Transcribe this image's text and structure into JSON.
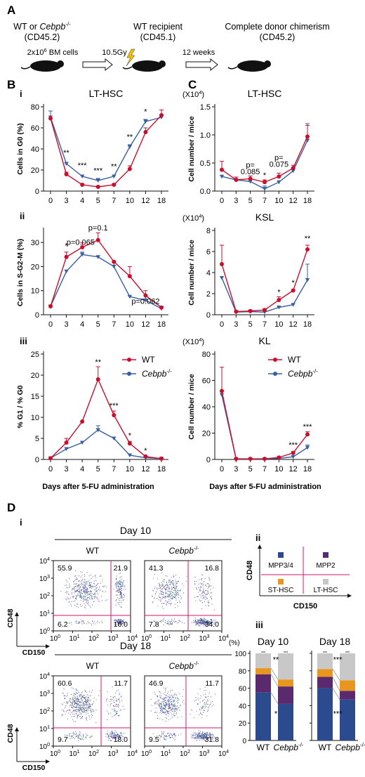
{
  "panel_A": {
    "letter": "A",
    "donor_label_pre": "WT or ",
    "donor_label_gene": "Cebpb",
    "donor_label_sup": "-/-",
    "donor_marker": "(CD45.2)",
    "cells": "2x10",
    "cells_exp": "6",
    "cells_rest": " BM cells",
    "dose": "10.5Gy",
    "recipient_label": "WT recipient",
    "recipient_marker": "(CD45.1)",
    "weeks": "12 weeks",
    "result_label": "Complete donor chimerism",
    "result_marker": "(CD45.2)"
  },
  "panel_letters": {
    "B": "B",
    "C": "C",
    "D": "D"
  },
  "sub_labels": {
    "i": "i",
    "ii": "ii",
    "iii": "iii"
  },
  "shared": {
    "xlabel": "Days after 5-FU administration",
    "legend_wt": "WT",
    "legend_ko_gene": "Cebpb",
    "legend_ko_sup": "-/-",
    "colors": {
      "wt": "#c8102e",
      "ko": "#3a5f9e"
    }
  },
  "chart_data": [
    {
      "id": "B-i",
      "type": "line",
      "title": "LT-HSC",
      "ylabel": "Cells in G0 (%)",
      "categories": [
        "0",
        "3",
        "4",
        "5",
        "7",
        "10",
        "12",
        "18"
      ],
      "ylim": [
        0,
        80
      ],
      "yticks": [
        0,
        20,
        40,
        60,
        80
      ],
      "series": [
        {
          "name": "WT",
          "values": [
            69,
            16,
            6,
            4,
            6,
            21,
            56,
            72
          ],
          "err": [
            0,
            2,
            1,
            1,
            1,
            3,
            4,
            5
          ]
        },
        {
          "name": "Cebpb-/-",
          "values": [
            70,
            26,
            14,
            10,
            14,
            42,
            66,
            70
          ],
          "err": [
            6,
            0,
            0,
            2,
            0,
            2,
            2,
            0
          ]
        }
      ],
      "annotations": [
        {
          "x": "3",
          "y": 34,
          "text": "**"
        },
        {
          "x": "4",
          "y": 22,
          "text": "***"
        },
        {
          "x": "5",
          "y": 17,
          "text": "***"
        },
        {
          "x": "7",
          "y": 21,
          "text": "**"
        },
        {
          "x": "10",
          "y": 49,
          "text": "**"
        },
        {
          "x": "12",
          "y": 73,
          "text": "*"
        }
      ]
    },
    {
      "id": "B-ii",
      "type": "line",
      "title": "",
      "ylabel": "Cells in S-G2-M (%)",
      "categories": [
        "0",
        "3",
        "4",
        "5",
        "7",
        "10",
        "12",
        "18"
      ],
      "ylim": [
        0,
        35
      ],
      "yticks": [
        0,
        10,
        20,
        30
      ],
      "series": [
        {
          "name": "WT",
          "values": [
            3.5,
            24,
            28,
            31,
            22,
            16,
            8,
            3
          ],
          "err": [
            0,
            2,
            2,
            3,
            0,
            4,
            2,
            0
          ]
        },
        {
          "name": "Cebpb-/-",
          "values": [
            3.5,
            18,
            25,
            24,
            20,
            7.5,
            6,
            2.5
          ],
          "err": [
            0,
            0,
            1,
            0,
            2,
            0,
            2,
            1
          ]
        }
      ],
      "annotations": [
        {
          "x": "3",
          "y": 27.5,
          "text": "*"
        },
        {
          "x": "3.9",
          "y": 29,
          "text": "p=0.065"
        },
        {
          "x": "5",
          "y": 35,
          "text": "p=0.1"
        },
        {
          "x": "12",
          "y": 4.5,
          "text": "p=0.062"
        }
      ]
    },
    {
      "id": "B-iii",
      "type": "line",
      "title": "",
      "ylabel": "% G1 / % G0",
      "categories": [
        "0",
        "3",
        "4",
        "5",
        "7",
        "10",
        "12",
        "18"
      ],
      "ylim": [
        0,
        25
      ],
      "yticks": [
        0,
        5,
        10,
        15,
        20,
        25
      ],
      "series": [
        {
          "name": "WT",
          "values": [
            0.3,
            4,
            9,
            19,
            10.5,
            3.8,
            0.7,
            0.2
          ],
          "err": [
            0,
            1,
            0,
            3,
            1,
            0.5,
            0,
            0
          ]
        },
        {
          "name": "Cebpb-/-",
          "values": [
            0.3,
            2.5,
            4,
            7,
            5,
            1,
            0.4,
            0.2
          ],
          "err": [
            0,
            0,
            0,
            1,
            0,
            0,
            0,
            0
          ]
        }
      ],
      "annotations": [
        {
          "x": "5",
          "y": 22.5,
          "text": "**"
        },
        {
          "x": "7",
          "y": 12.2,
          "text": "***"
        },
        {
          "x": "10",
          "y": 5.1,
          "text": "*"
        },
        {
          "x": "12",
          "y": 1.5,
          "text": "*"
        }
      ],
      "legend": "top-right"
    },
    {
      "id": "C-LT-HSC",
      "type": "line",
      "title": "LT-HSC",
      "y_unit": "(X10",
      "y_unit_exp": "4",
      "y_unit_close": ")",
      "ylabel": "Cell number / mice",
      "categories": [
        "0",
        "3",
        "5",
        "7",
        "10",
        "12",
        "18"
      ],
      "ylim": [
        0,
        1.5
      ],
      "yticks": [
        0,
        0.5,
        1.0,
        1.5
      ],
      "ytick_labels": [
        "0.0",
        "0.5",
        "1.0",
        "1.5"
      ],
      "series": [
        {
          "name": "WT",
          "values": [
            0.38,
            0.2,
            0.22,
            0.16,
            0.26,
            0.41,
            0.97
          ],
          "err": [
            0.15,
            0.05,
            0.05,
            0.04,
            0.06,
            0.05,
            0.2
          ]
        },
        {
          "name": "Cebpb-/-",
          "values": [
            0.26,
            0.2,
            0.17,
            0.04,
            0.16,
            0.36,
            0.9
          ],
          "err": [
            0,
            0.05,
            0,
            0.05,
            0,
            0,
            0.3
          ]
        }
      ],
      "annotations": [
        {
          "x": "5",
          "y": 0.42,
          "text": "p="
        },
        {
          "x": "5",
          "y": 0.3,
          "text": "0.085"
        },
        {
          "x": "7",
          "y": 0.24,
          "text": "*"
        },
        {
          "x": "10",
          "y": 0.55,
          "text": "p="
        },
        {
          "x": "10",
          "y": 0.43,
          "text": "0.075"
        }
      ]
    },
    {
      "id": "C-KSL",
      "type": "line",
      "title": "KSL",
      "y_unit": "(X10",
      "y_unit_exp": "4",
      "y_unit_close": ")",
      "ylabel": "Cell number / mice",
      "categories": [
        "0",
        "3",
        "5",
        "7",
        "10",
        "12",
        "18"
      ],
      "ylim": [
        0,
        8
      ],
      "yticks": [
        0,
        2,
        4,
        6,
        8
      ],
      "series": [
        {
          "name": "WT",
          "values": [
            4.8,
            0.3,
            0.35,
            0.45,
            1.4,
            2.3,
            6.2
          ],
          "err": [
            1.8,
            0,
            0.1,
            0.1,
            0.3,
            0.1,
            0.4
          ]
        },
        {
          "name": "Cebpb-/-",
          "values": [
            3.5,
            0.25,
            0.3,
            0.25,
            0.7,
            0.95,
            3.3
          ],
          "err": [
            0,
            0,
            0,
            0,
            0,
            0,
            1.5
          ]
        }
      ],
      "annotations": [
        {
          "x": "10",
          "y": 1.9,
          "text": "*"
        },
        {
          "x": "12",
          "y": 2.8,
          "text": "*"
        },
        {
          "x": "18",
          "y": 7.0,
          "text": "**"
        }
      ]
    },
    {
      "id": "C-KL",
      "type": "line",
      "title": "KL",
      "y_unit": "(X10",
      "y_unit_exp": "4",
      "y_unit_close": ")",
      "ylabel": "Cell number / mice",
      "categories": [
        "0",
        "3",
        "5",
        "7",
        "10",
        "12",
        "18"
      ],
      "ylim": [
        0,
        80
      ],
      "yticks": [
        0,
        20,
        40,
        60,
        80
      ],
      "series": [
        {
          "name": "WT",
          "values": [
            52,
            0.5,
            0.5,
            0.5,
            1.5,
            5,
            19
          ],
          "err": [
            18,
            0,
            0,
            0,
            0.5,
            1,
            2
          ]
        },
        {
          "name": "Cebpb-/-",
          "values": [
            49,
            0.3,
            0.3,
            0.3,
            0.8,
            2,
            9
          ],
          "err": [
            0,
            0,
            0,
            0,
            0,
            0,
            2
          ]
        }
      ],
      "annotations": [
        {
          "x": "12",
          "y": 9,
          "text": "***"
        },
        {
          "x": "18",
          "y": 23,
          "text": "***"
        }
      ],
      "legend": "top-right"
    },
    {
      "id": "D-iii-day10",
      "type": "bar",
      "title": "Day 10",
      "ylabel": "(%)",
      "categories": [
        "WT",
        "Cebpb-/-"
      ],
      "ylim": [
        0,
        100
      ],
      "yticks": [
        0,
        20,
        40,
        60,
        80,
        100
      ],
      "series": [
        {
          "name": "MPP3/4",
          "values": [
            55,
            42
          ]
        },
        {
          "name": "MPP2",
          "values": [
            21,
            20
          ]
        },
        {
          "name": "ST-HSC",
          "values": [
            7,
            8
          ]
        },
        {
          "name": "LT-HSC",
          "values": [
            17,
            30
          ]
        }
      ],
      "annotations": [
        {
          "text": "**"
        },
        {
          "text": "*"
        }
      ]
    },
    {
      "id": "D-iii-day18",
      "type": "bar",
      "title": "Day 18",
      "ylabel": "",
      "categories": [
        "WT",
        "Cebpb-/-"
      ],
      "ylim": [
        0,
        100
      ],
      "yticks": [
        0,
        20,
        40,
        60,
        80,
        100
      ],
      "series": [
        {
          "name": "MPP3/4",
          "values": [
            60,
            47
          ]
        },
        {
          "name": "MPP2",
          "values": [
            13,
            10
          ]
        },
        {
          "name": "ST-HSC",
          "values": [
            9,
            12
          ]
        },
        {
          "name": "LT-HSC",
          "values": [
            18,
            31
          ]
        }
      ],
      "annotations": [
        {
          "text": "***"
        },
        {
          "text": "***"
        }
      ]
    }
  ],
  "flow": {
    "xlabel": "CD150",
    "ylabel": "CD48",
    "tick_base": "10",
    "tick_exps": [
      "0",
      "1",
      "2",
      "3",
      "4"
    ],
    "day10": {
      "title": "Day 10",
      "wt": {
        "label": "WT",
        "q": [
          "55.9",
          "21.9",
          "6.2",
          "16.0"
        ]
      },
      "ko": {
        "label_gene": "Cebpb",
        "label_sup": "-/-",
        "q": [
          "41.3",
          "16.8",
          "7.8",
          "34.0"
        ]
      }
    },
    "day18": {
      "title": "Day 18",
      "wt": {
        "label": "WT",
        "q": [
          "60.6",
          "11.7",
          "9.7",
          "18.0"
        ]
      },
      "ko": {
        "label_gene": "Cebpb",
        "label_sup": "-/-",
        "q": [
          "46.9",
          "11.7",
          "9.5",
          "31.8"
        ]
      }
    }
  },
  "quadrant_key": {
    "ylabel": "CD48",
    "xlabel": "CD150",
    "items": [
      {
        "label": "MPP3/4",
        "color": "#2c4b8e"
      },
      {
        "label": "MPP2",
        "color": "#5b2a6e"
      },
      {
        "label": "ST-HSC",
        "color": "#e8961e"
      },
      {
        "label": "LT-HSC",
        "color": "#c8c8c8"
      }
    ]
  }
}
